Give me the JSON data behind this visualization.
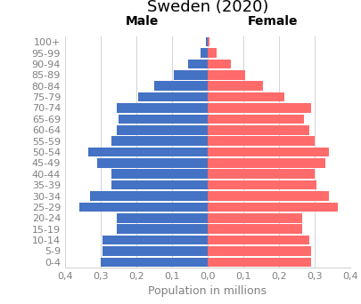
{
  "title": "Sweden (2020)",
  "xlabel": "Population in millions",
  "male_label": "Male",
  "female_label": "Female",
  "age_groups": [
    "0-4",
    "5-9",
    "10-14",
    "15-19",
    "20-24",
    "25-29",
    "30-34",
    "35-39",
    "40-44",
    "45-49",
    "50-54",
    "55-59",
    "60-64",
    "65-69",
    "70-74",
    "75-79",
    "80-84",
    "85-89",
    "90-94",
    "95-99",
    "100+"
  ],
  "male_values": [
    0.3,
    0.295,
    0.295,
    0.255,
    0.255,
    0.36,
    0.33,
    0.27,
    0.27,
    0.31,
    0.335,
    0.27,
    0.255,
    0.25,
    0.255,
    0.195,
    0.15,
    0.095,
    0.055,
    0.02,
    0.005
  ],
  "female_values": [
    0.29,
    0.29,
    0.285,
    0.265,
    0.265,
    0.365,
    0.34,
    0.305,
    0.3,
    0.33,
    0.34,
    0.3,
    0.285,
    0.27,
    0.29,
    0.215,
    0.155,
    0.105,
    0.065,
    0.025,
    0.005
  ],
  "male_color": "#4472C4",
  "female_color": "#FF6B6B",
  "background_color": "#FFFFFF",
  "xlim": 0.4,
  "title_fontsize": 13,
  "label_fontsize": 9,
  "tick_fontsize": 8,
  "bar_height": 0.85
}
